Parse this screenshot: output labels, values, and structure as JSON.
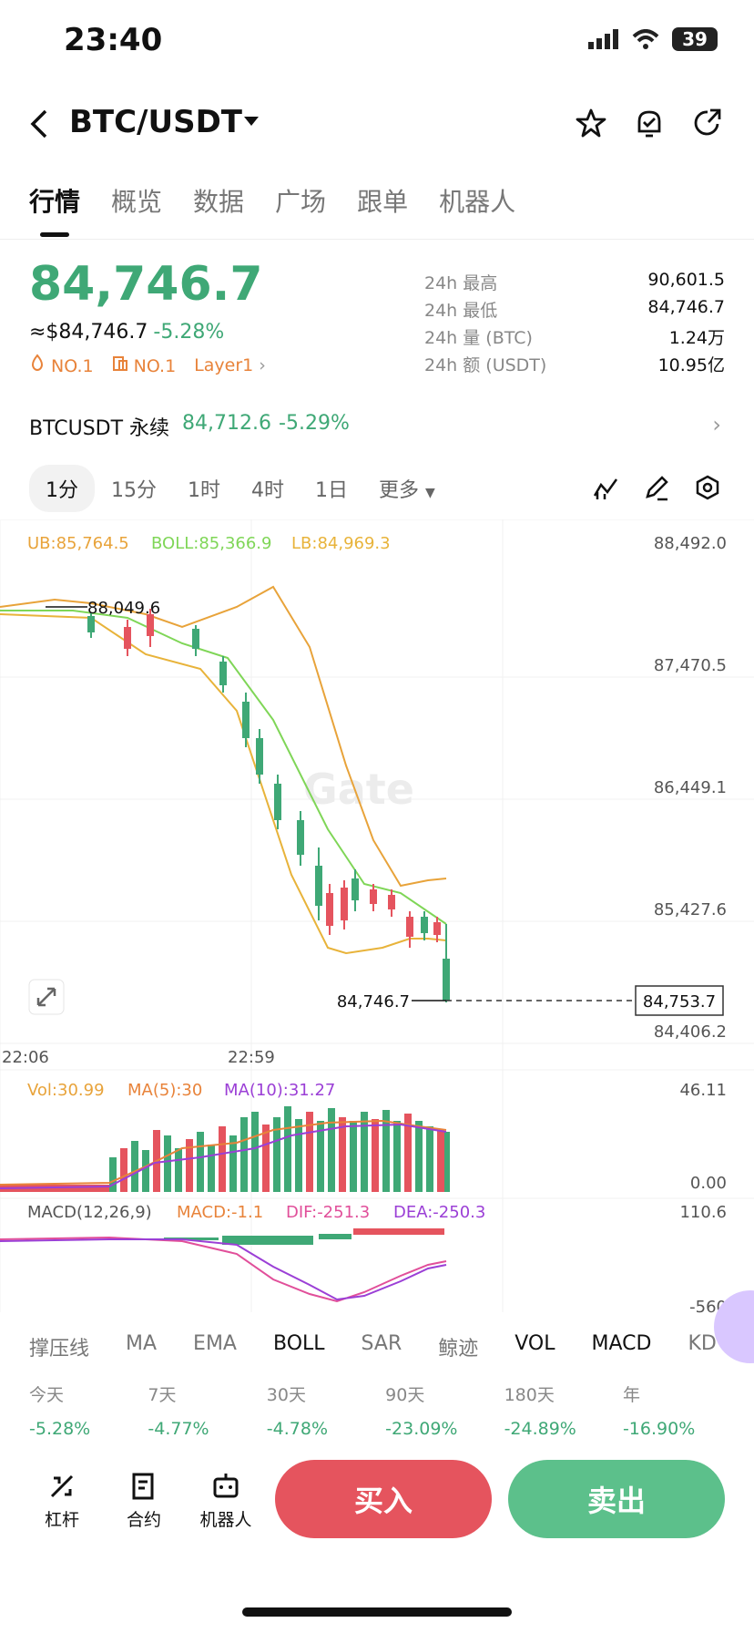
{
  "status": {
    "time": "23:40",
    "battery": "39"
  },
  "nav": {
    "pair": "BTC/USDT"
  },
  "tabs": [
    "行情",
    "概览",
    "数据",
    "广场",
    "跟单",
    "机器人"
  ],
  "price": {
    "last": "84,746.7",
    "usd": "≈$84,746.7",
    "change": "-5.28%"
  },
  "badges": {
    "rank1": "NO.1",
    "rank2": "NO.1",
    "sector": "Layer1"
  },
  "stats": [
    {
      "label": "24h  最高",
      "value": "90,601.5"
    },
    {
      "label": "24h  最低",
      "value": "84,746.7"
    },
    {
      "label": "24h  量 (BTC)",
      "value": "1.24万"
    },
    {
      "label": "24h  额 (USDT)",
      "value": "10.95亿"
    }
  ],
  "perp": {
    "name": "BTCUSDT 永续",
    "price": "84,712.6",
    "change": "-5.29%"
  },
  "intervals": [
    "1分",
    "15分",
    "1时",
    "4时",
    "1日",
    "更多"
  ],
  "chart": {
    "boll_ub": "UB:85,764.5",
    "boll_mid": "BOLL:85,366.9",
    "boll_lb": "LB:84,969.3",
    "y_ticks": [
      "88,492.0",
      "87,470.5",
      "86,449.1",
      "85,427.6",
      "84,406.2"
    ],
    "x_ticks": [
      "22:06",
      "22:59"
    ],
    "high_marker": "88,049.6",
    "low_marker": "84,746.7",
    "current_tag": "84,753.7",
    "watermark": "Gate",
    "vol": "Vol:30.99",
    "vol_ma5": "MA(5):30",
    "vol_ma10": "MA(10):31.27",
    "vol_max": "46.11",
    "vol_min": "0.00",
    "macd_title": "MACD(12,26,9)",
    "macd_val": "MACD:-1.1",
    "dif": "DIF:-251.3",
    "dea": "DEA:-250.3",
    "macd_max": "110.6",
    "macd_min": "-560"
  },
  "indicators": [
    "撑压线",
    "MA",
    "EMA",
    "BOLL",
    "SAR",
    "鲸迹",
    "VOL",
    "MACD",
    "KD"
  ],
  "performance": [
    {
      "period": "今天",
      "change": "-5.28%"
    },
    {
      "period": "7天",
      "change": "-4.77%"
    },
    {
      "period": "30天",
      "change": "-4.78%"
    },
    {
      "period": "90天",
      "change": "-23.09%"
    },
    {
      "period": "180天",
      "change": "-24.89%"
    },
    {
      "period": "年",
      "change": "-16.90%"
    }
  ],
  "bottom": {
    "leverage": "杠杆",
    "contract": "合约",
    "robot": "机器人",
    "buy": "买入",
    "sell": "卖出"
  },
  "colors": {
    "up": "#3fa876",
    "down": "#e5545e",
    "boll_ub": "#e8a33a",
    "boll_mid": "#7fd657",
    "dif": "#e14f9a",
    "dea": "#9b3fd6"
  }
}
